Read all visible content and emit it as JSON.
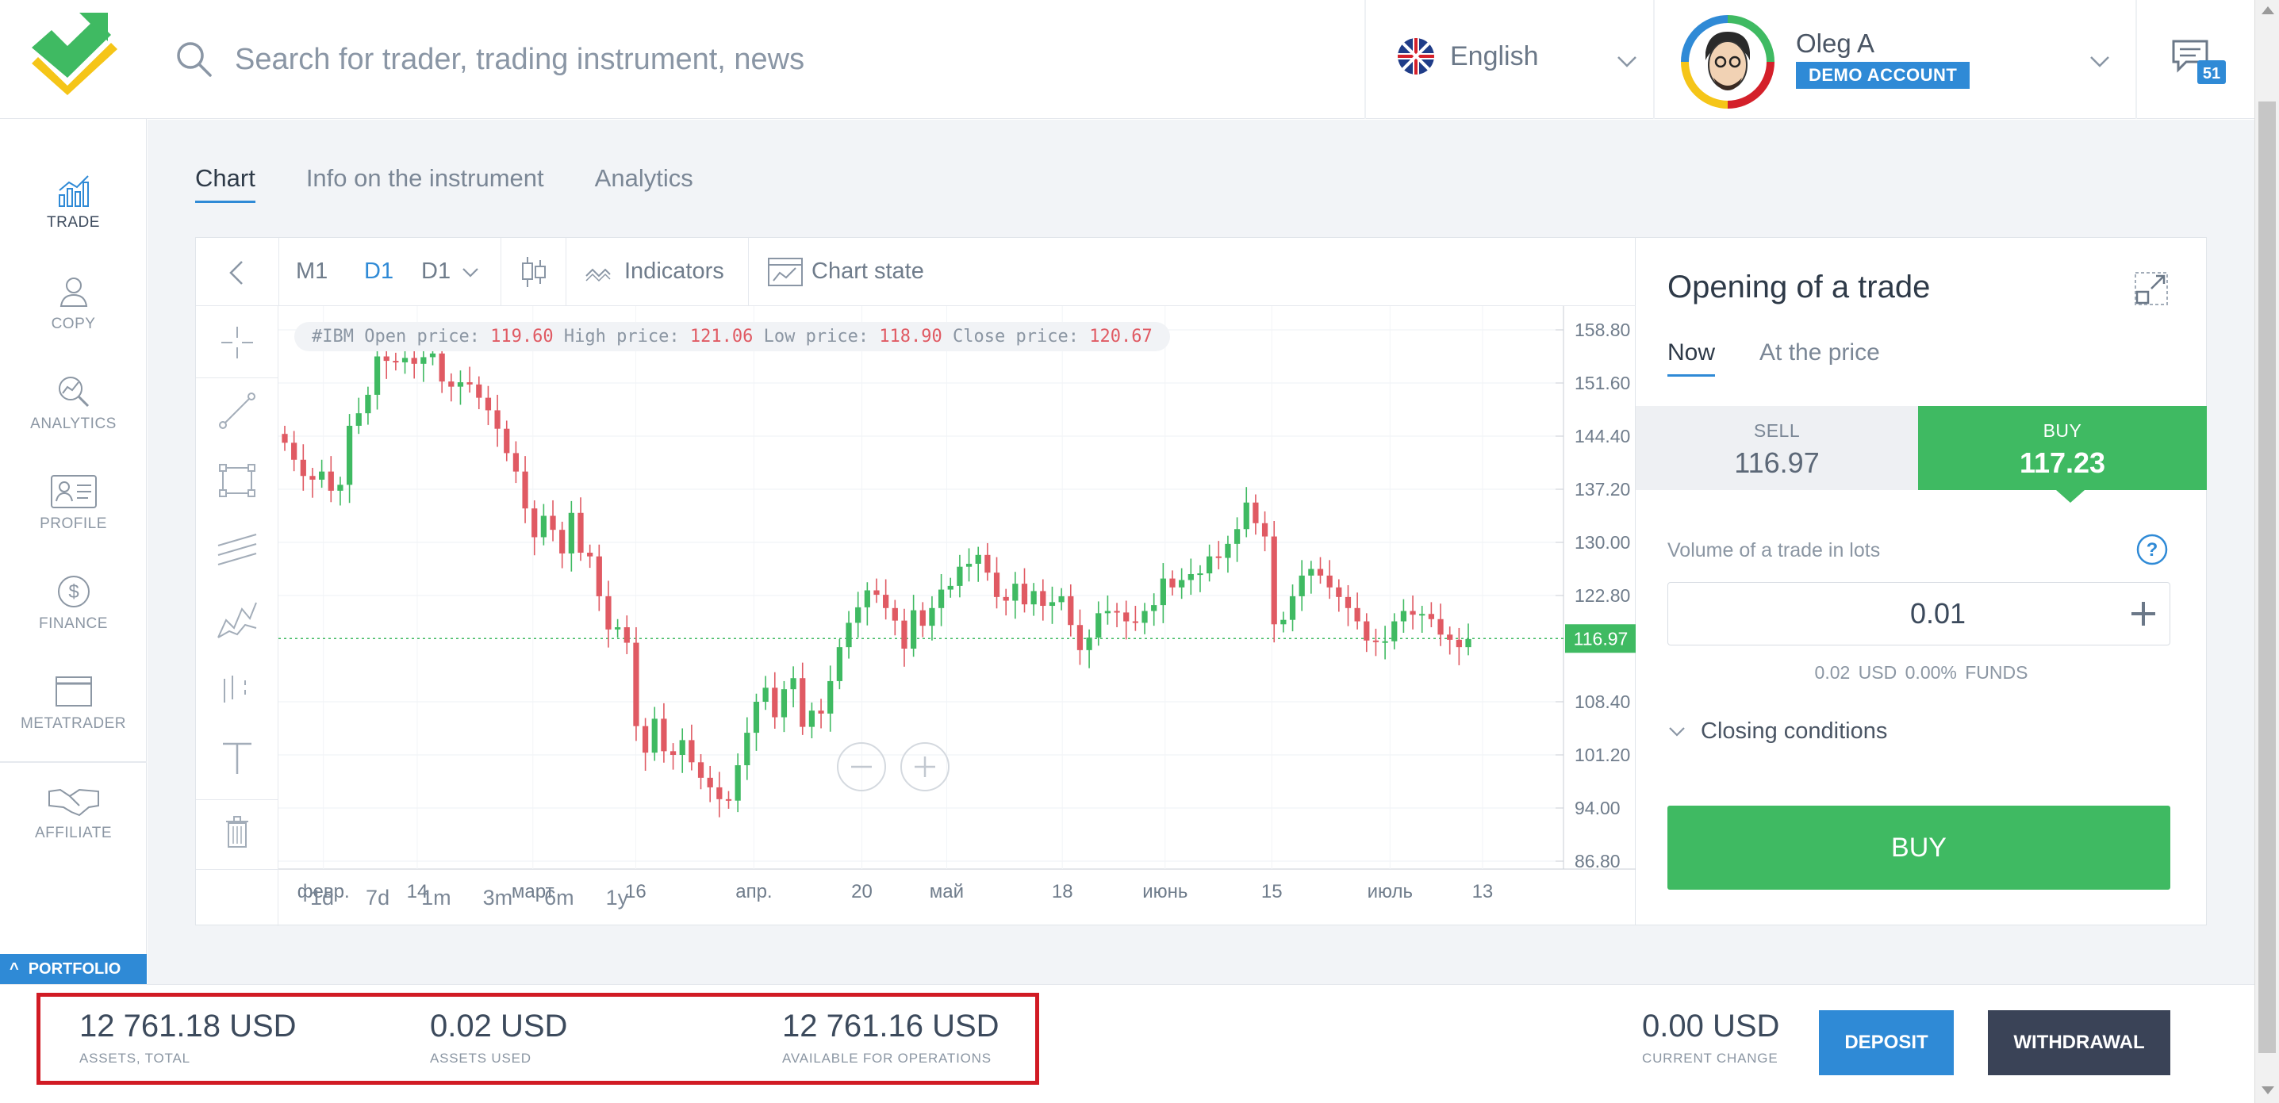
{
  "header": {
    "search_placeholder": "Search for trader, trading instrument, news",
    "language": "English",
    "user_name": "Oleg A",
    "account_badge": "DEMO ACCOUNT",
    "notifications_count": "51"
  },
  "sidebar": {
    "items": [
      {
        "label": "TRADE",
        "icon": "chart-bars-icon"
      },
      {
        "label": "COPY",
        "icon": "user-icon"
      },
      {
        "label": "ANALYTICS",
        "icon": "magnifier-chart-icon"
      },
      {
        "label": "PROFILE",
        "icon": "id-card-icon"
      },
      {
        "label": "FINANCE",
        "icon": "dollar-coin-icon"
      },
      {
        "label": "METATRADER",
        "icon": "window-icon"
      },
      {
        "label": "AFFILIATE",
        "icon": "handshake-icon"
      }
    ],
    "portfolio": "PORTFOLIO"
  },
  "tabs": [
    "Chart",
    "Info on the instrument",
    "Analytics"
  ],
  "toolbar": {
    "timeframes": [
      "M1",
      "D1",
      "D1"
    ],
    "indicators": "Indicators",
    "chart_state": "Chart state"
  },
  "chart_info": {
    "symbol": "#IBM",
    "open_label": "Open price:",
    "open": "119.60",
    "high_label": "High price:",
    "high": "121.06",
    "low_label": "Low price:",
    "low": "118.90",
    "close_label": "Close price:",
    "close": "120.67",
    "current_price_label": "116.97"
  },
  "periods": [
    "1d",
    "7d",
    "1m",
    "3m",
    "6m",
    "1y"
  ],
  "chart_data": {
    "type": "candlestick",
    "y_ticks": [
      "158.80",
      "151.60",
      "144.40",
      "137.20",
      "130.00",
      "122.80",
      "108.40",
      "101.20",
      "94.00",
      "86.80"
    ],
    "x_ticks": [
      "февр.",
      "14",
      "март",
      "16",
      "апр.",
      "20",
      "май",
      "18",
      "июнь",
      "15",
      "июль",
      "13"
    ],
    "ylim": [
      86.8,
      158.8
    ],
    "current_price": 116.97,
    "up_color": "#3fba62",
    "down_color": "#e05a63",
    "closes": [
      143.5,
      141.2,
      139.0,
      138.5,
      139.6,
      137.0,
      137.8,
      145.8,
      147.5,
      150.0,
      155.2,
      154.6,
      154.4,
      155.0,
      154.2,
      155.1,
      155.6,
      151.8,
      151.1,
      151.7,
      151.4,
      149.6,
      147.9,
      145.4,
      142.1,
      139.6,
      134.6,
      130.7,
      133.6,
      131.7,
      128.5,
      134.0,
      128.6,
      128.1,
      122.7,
      118.2,
      118.5,
      116.4,
      105.1,
      101.5,
      106.1,
      101.7,
      101.2,
      103.2,
      100.2,
      98.1,
      96.8,
      95.2,
      95.0,
      99.8,
      104.2,
      108.4,
      110.3,
      106.3,
      110.1,
      111.6,
      105.0,
      107.2,
      106.8,
      111.2,
      115.8,
      119.1,
      121.2,
      123.5,
      122.9,
      121.1,
      119.4,
      115.6,
      120.8,
      118.7,
      121.1,
      123.6,
      124.1,
      126.7,
      127.1,
      128.3,
      125.9,
      122.6,
      122.1,
      124.4,
      121.6,
      123.4,
      121.4,
      121.9,
      122.7,
      118.8,
      115.4,
      117.1,
      120.4,
      120.7,
      120.5,
      119.3,
      119.1,
      120.7,
      121.5,
      125.1,
      123.9,
      124.9,
      125.7,
      125.8,
      128.1,
      127.9,
      129.8,
      131.8,
      135.4,
      132.6,
      130.8,
      118.9,
      119.5,
      122.7,
      125.5,
      126.4,
      125.5,
      123.9,
      122.6,
      121.1,
      119.3,
      116.7,
      116.6,
      116.6,
      119.3,
      120.7,
      120.2,
      120.3,
      119.6,
      117.5,
      116.8,
      115.8,
      116.9
    ]
  },
  "trade_panel": {
    "title": "Opening of a trade",
    "tabs": [
      "Now",
      "At the price"
    ],
    "sell_label": "SELL",
    "sell_price": "116.97",
    "buy_label": "BUY",
    "buy_price": "117.23",
    "volume_label": "Volume of a trade in lots",
    "volume_value": "0.01",
    "volume_cost": "0.02 USD",
    "volume_funds": "0.00% FUNDS",
    "closing_conditions": "Closing conditions",
    "buy_button": "BUY"
  },
  "footer": {
    "assets_total": "12 761.18 USD",
    "assets_total_label": "ASSETS, TOTAL",
    "assets_used": "0.02 USD",
    "assets_used_label": "ASSETS USED",
    "available": "12 761.16 USD",
    "available_label": "AVAILABLE FOR OPERATIONS",
    "current_change": "0.00 USD",
    "current_change_label": "CURRENT CHANGE",
    "deposit": "DEPOSIT",
    "withdrawal": "WITHDRAWAL"
  }
}
